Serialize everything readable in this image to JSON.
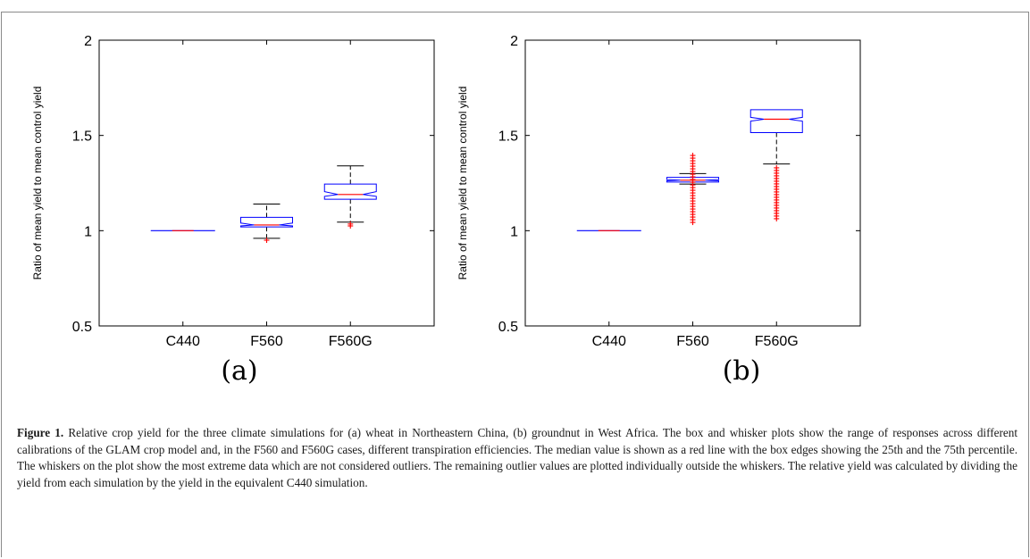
{
  "chart_data": [
    {
      "type": "box",
      "panel_label": "(a)",
      "ylabel": "Ratio of mean yield to mean control yield",
      "ylim": [
        0.5,
        2
      ],
      "yticks": [
        0.5,
        1,
        1.5,
        2
      ],
      "ytick_labels": [
        "0.5",
        "1",
        "1.5",
        "2"
      ],
      "categories": [
        "C440",
        "F560",
        "F560G"
      ],
      "notched": [
        false,
        true,
        true
      ],
      "boxes": [
        {
          "q1": 1.0,
          "median": 1.0,
          "q3": 1.0,
          "notch_low": 1.0,
          "notch_high": 1.0,
          "whisker_low": 1.0,
          "whisker_high": 1.0,
          "outliers": []
        },
        {
          "q1": 1.02,
          "median": 1.03,
          "q3": 1.07,
          "notch_low": 1.025,
          "notch_high": 1.04,
          "whisker_low": 0.96,
          "whisker_high": 1.14,
          "outliers": [
            0.95
          ]
        },
        {
          "q1": 1.165,
          "median": 1.19,
          "q3": 1.245,
          "notch_low": 1.18,
          "notch_high": 1.205,
          "whisker_low": 1.045,
          "whisker_high": 1.34,
          "outliers": [
            1.025,
            1.035
          ]
        }
      ]
    },
    {
      "type": "box",
      "panel_label": "(b)",
      "ylabel": "Ratio of mean yield to mean control yield",
      "ylim": [
        0.5,
        2
      ],
      "yticks": [
        0.5,
        1,
        1.5,
        2
      ],
      "ytick_labels": [
        "0.5",
        "1",
        "1.5",
        "2"
      ],
      "categories": [
        "C440",
        "F560",
        "F560G"
      ],
      "notched": [
        false,
        true,
        true
      ],
      "boxes": [
        {
          "q1": 1.0,
          "median": 1.0,
          "q3": 1.0,
          "notch_low": 1.0,
          "notch_high": 1.0,
          "whisker_low": 1.0,
          "whisker_high": 1.0,
          "outliers": []
        },
        {
          "q1": 1.255,
          "median": 1.265,
          "q3": 1.28,
          "notch_low": 1.262,
          "notch_high": 1.268,
          "whisker_low": 1.245,
          "whisker_high": 1.3,
          "outliers_range": [
            1.03,
            1.395
          ],
          "outliers_above": [
            1.31,
            1.33,
            1.35,
            1.37,
            1.39
          ]
        },
        {
          "q1": 1.515,
          "median": 1.585,
          "q3": 1.635,
          "notch_low": 1.575,
          "notch_high": 1.595,
          "whisker_low": 1.35,
          "whisker_high": 1.635,
          "outliers_range": [
            1.05,
            1.33
          ]
        }
      ]
    }
  ],
  "caption": {
    "label": "Figure 1.",
    "text": " Relative crop yield for the three climate simulations for (a) wheat in Northeastern China, (b) groundnut in West Africa. The box and whisker plots show the range of responses across different calibrations of the GLAM crop model and, in the F560 and F560G cases, different transpiration efficiencies. The median value is shown as a red line with the box edges showing the 25th and the 75th percentile. The whiskers on the plot show the most extreme data which are not considered outliers. The remaining outlier values are plotted individually outside the whiskers. The relative yield was calculated by dividing the yield from each simulation by the yield in the equivalent C440 simulation."
  },
  "colors": {
    "box": "#0000ff",
    "median": "#ff0000",
    "outlier": "#ff0000",
    "whisker": "#000000"
  }
}
